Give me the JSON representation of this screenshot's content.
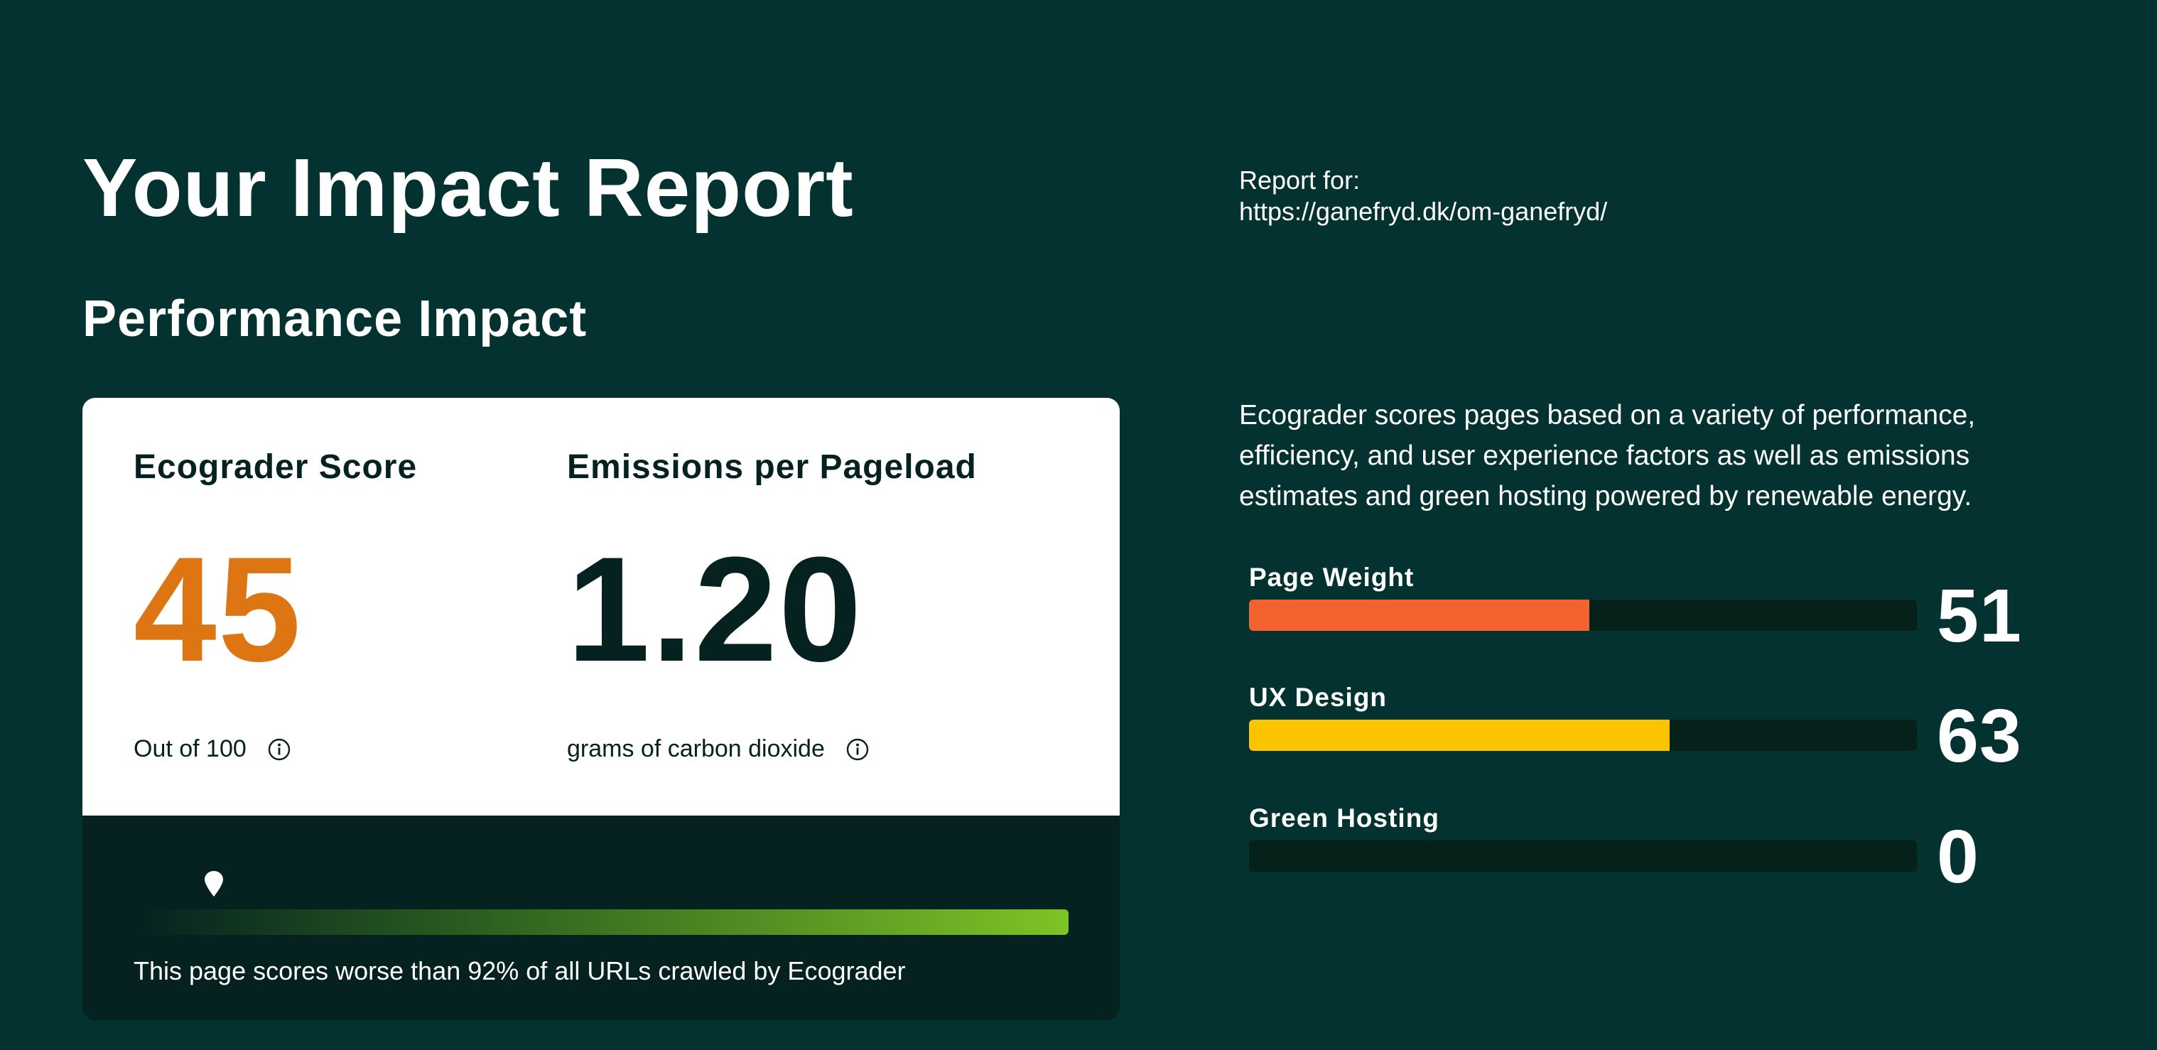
{
  "page": {
    "title": "Your Impact Report",
    "subtitle": "Performance Impact"
  },
  "report_for": {
    "label": "Report for:",
    "url": "https://ganefryd.dk/om-ganefryd/"
  },
  "card": {
    "score": {
      "label": "Ecograder Score",
      "value": "45",
      "sub": "Out of 100",
      "color": "#dc7512"
    },
    "emissions": {
      "label": "Emissions per Pageload",
      "value": "1.20",
      "sub": "grams of carbon dioxide"
    },
    "percentile": {
      "text": "This page scores worse than 92% of all URLs crawled by Ecograder",
      "marker_fraction": 0.05
    },
    "icons": [
      "info-icon",
      "map-pin-icon"
    ]
  },
  "description": "Ecograder scores pages based on a variety of performance, efficiency, and user experience factors as well as emissions estimates and green hosting powered by renewable energy.",
  "factors": [
    {
      "label": "Page Weight",
      "value": "51",
      "fill_percent": 51,
      "color": "#f2632f"
    },
    {
      "label": "UX Design",
      "value": "63",
      "fill_percent": 63,
      "color": "#fcc300"
    },
    {
      "label": "Green Hosting",
      "value": "0",
      "fill_percent": 0,
      "color": "#3bb54a"
    }
  ],
  "colors": {
    "background": "#033231",
    "dark_panel": "#052120",
    "gradient_end": "#7ec326"
  }
}
